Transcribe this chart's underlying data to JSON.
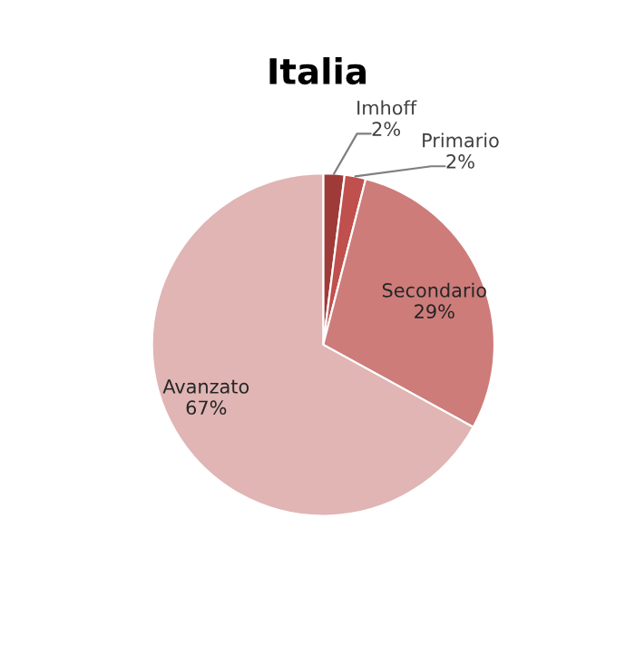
{
  "chart_data": {
    "type": "pie",
    "title": "Italia",
    "categories": [
      "Imhoff",
      "Primario",
      "Secondario",
      "Avanzato"
    ],
    "values": [
      2,
      2,
      29,
      67
    ],
    "value_labels": [
      "2%",
      "2%",
      "29%",
      "67%"
    ],
    "colors": [
      "#9e3b39",
      "#c0504d",
      "#cd7c7a",
      "#e0b5b4"
    ]
  }
}
